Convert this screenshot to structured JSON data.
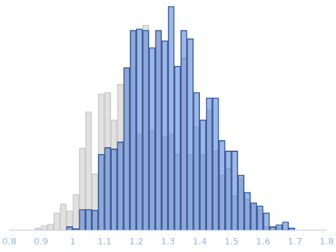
{
  "chart_data": {
    "type": "histogram",
    "bins": [
      0.88,
      0.9,
      0.92,
      0.94,
      0.96,
      0.98,
      1.0,
      1.02,
      1.04,
      1.06,
      1.08,
      1.1,
      1.12,
      1.14,
      1.16,
      1.18,
      1.2,
      1.22,
      1.24,
      1.26,
      1.28,
      1.3,
      1.32,
      1.34,
      1.36,
      1.38,
      1.4,
      1.42,
      1.44,
      1.46,
      1.48,
      1.5,
      1.52,
      1.54,
      1.56,
      1.58,
      1.6,
      1.62,
      1.64,
      1.66,
      1.68,
      1.7
    ],
    "series": [
      {
        "color": "#c8c8c8",
        "values": [
          3,
          7,
          9,
          25,
          38,
          28,
          52,
          119,
          172,
          82,
          198,
          200,
          160,
          212,
          236,
          290,
          140,
          298,
          145,
          290,
          137,
          140,
          110,
          250,
          110,
          150,
          110,
          175,
          115,
          80,
          90,
          50,
          75,
          45,
          38,
          30,
          5,
          5,
          4,
          1,
          0
        ]
      },
      {
        "color": "#3f6fc6",
        "values": [
          0,
          0,
          0,
          0,
          0,
          5,
          2,
          30,
          30,
          29,
          110,
          120,
          118,
          128,
          236,
          290,
          292,
          290,
          265,
          290,
          275,
          325,
          238,
          290,
          278,
          200,
          160,
          192,
          192,
          130,
          115,
          115,
          80,
          55,
          40,
          35,
          25,
          5,
          8,
          12,
          3
        ]
      }
    ],
    "xlim": [
      0.8,
      1.8
    ],
    "xticks": [
      0.8,
      0.9,
      1,
      1.1,
      1.2,
      1.3,
      1.4,
      1.5,
      1.6,
      1.7,
      1.8
    ],
    "ylim": [
      0,
      330
    ],
    "grid": false,
    "legend": false,
    "tick_labels": "x"
  }
}
